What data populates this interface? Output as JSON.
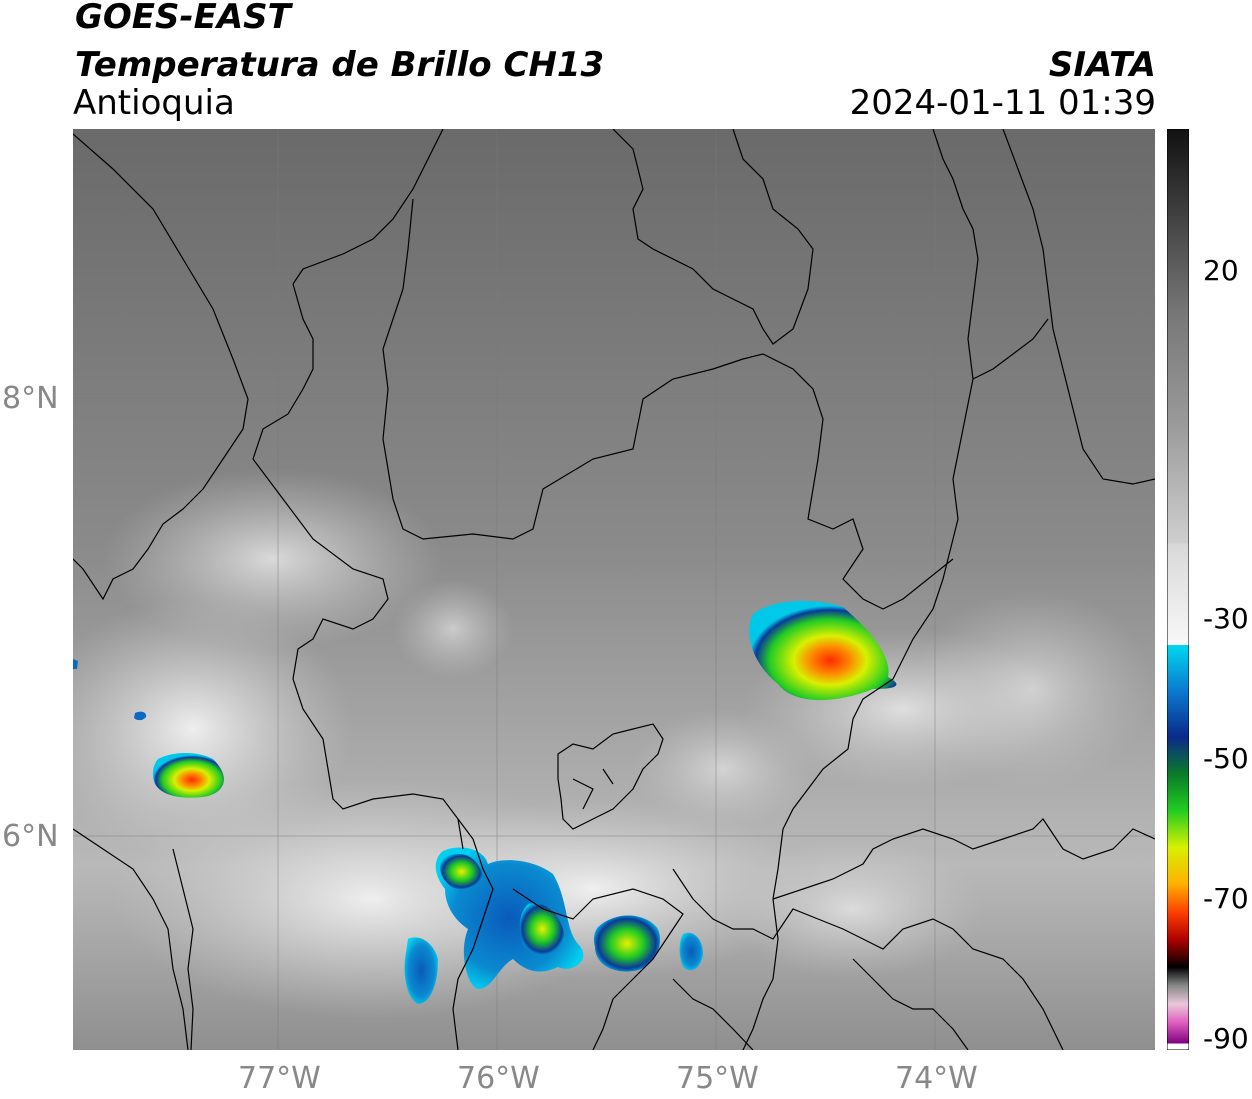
{
  "header": {
    "satellite": "GOES-EAST",
    "product": "Temperatura de Brillo CH13",
    "region": "Antioquia",
    "brand": "SIATA",
    "datetime": "2024-01-11 01:39"
  },
  "map_axes": {
    "lon_ticks": [
      "77°W",
      "76°W",
      "75°W",
      "74°W"
    ],
    "lat_ticks": [
      "8°N",
      "6°N"
    ]
  },
  "colorbar": {
    "ticks": [
      "20",
      "-30",
      "-50",
      "-70",
      "-90"
    ],
    "colors": {
      "warm_top": "#111111",
      "gray_mid": "#9a9a9a",
      "white": "#f8f8f8",
      "cyan": "#00d8f0",
      "blue": "#0a2a8a",
      "green": "#22cc22",
      "yellow": "#f0f000",
      "orange": "#ff8a00",
      "red": "#e00000",
      "black": "#000000",
      "pink": "#e060c0",
      "purple": "#800080"
    }
  },
  "legend_icons": {
    "colorbar_box": "temperature-colorbar"
  }
}
